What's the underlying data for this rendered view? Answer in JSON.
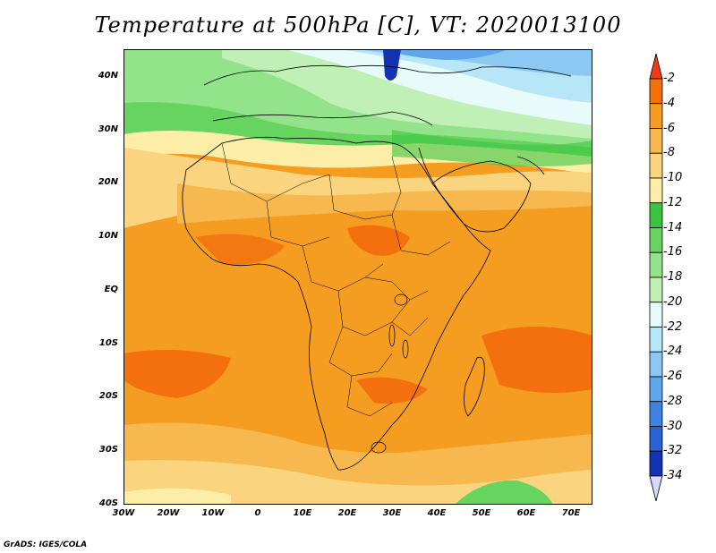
{
  "title": "Temperature at 500hPa [C], VT: 2020013100",
  "credit": "GrADS: IGES/COLA",
  "map": {
    "projection": "lat-lon",
    "region": "Africa",
    "lon_range": [
      -30,
      75
    ],
    "lat_range": [
      -40,
      45
    ],
    "lat_ticks": [
      "40N",
      "30N",
      "20N",
      "10N",
      "EQ",
      "10S",
      "20S",
      "30S",
      "40S"
    ],
    "lon_ticks": [
      "30W",
      "20W",
      "10W",
      "0",
      "10E",
      "20E",
      "30E",
      "40E",
      "50E",
      "60E",
      "70E"
    ],
    "dominant_field": "orange (-6 to -4 C) over tropics and southern Africa; green/blue in the north"
  },
  "colorbar": {
    "levels": [
      "-2",
      "-4",
      "-6",
      "-8",
      "-10",
      "-12",
      "-14",
      "-16",
      "-18",
      "-20",
      "-22",
      "-24",
      "-26",
      "-28",
      "-30",
      "-32",
      "-34"
    ],
    "colors": [
      "#f03c13",
      "#f46f0e",
      "#f59d21",
      "#f7b84f",
      "#fad47e",
      "#fceda7",
      "#3bc441",
      "#66d45f",
      "#93e38a",
      "#c1f0b6",
      "#e8fbfb",
      "#b7e6f6",
      "#8cc8f2",
      "#60a6ec",
      "#3e82e3",
      "#2a61d3",
      "#1433b2",
      "#0c1671"
    ]
  }
}
